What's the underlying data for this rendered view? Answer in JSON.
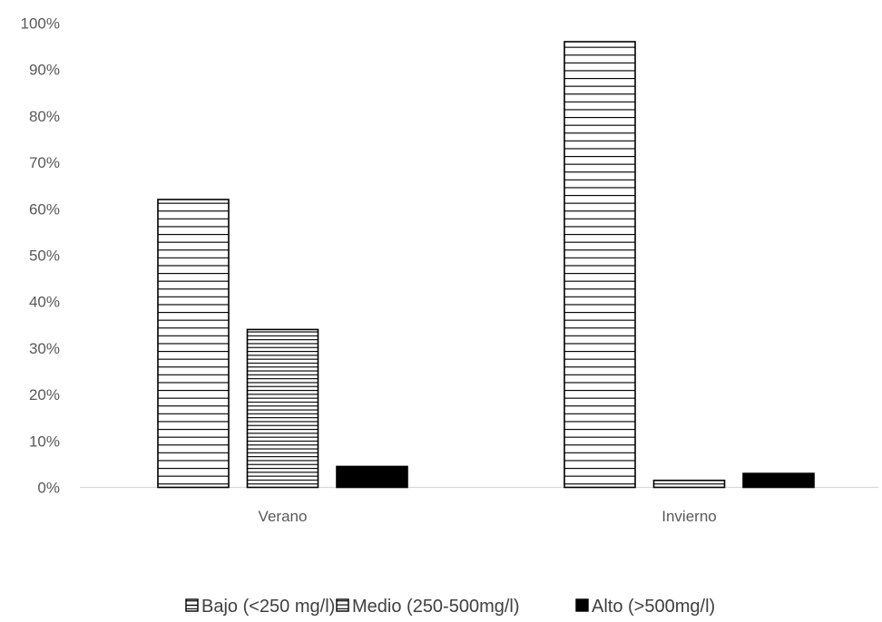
{
  "chart_data": {
    "type": "bar",
    "categories": [
      "Verano",
      "Invierno"
    ],
    "series": [
      {
        "name": "Bajo (<250 mg/l)",
        "values": [
          62,
          96
        ],
        "pattern": "wide-horizontal"
      },
      {
        "name": "Medio (250-500mg/l)",
        "values": [
          34,
          1.5
        ],
        "pattern": "narrow-horizontal"
      },
      {
        "name": "Alto (>500mg/l)",
        "values": [
          4.5,
          3
        ],
        "pattern": "solid"
      }
    ],
    "y_ticks": [
      "0%",
      "10%",
      "20%",
      "30%",
      "40%",
      "50%",
      "60%",
      "70%",
      "80%",
      "90%",
      "100%"
    ],
    "ylim": [
      0,
      100
    ],
    "grid": false,
    "legend": "bottom",
    "colors": {
      "bar_outline": "#000000",
      "fill": "#ffffff",
      "axis": "#d9d9d9",
      "text": "#595959"
    }
  }
}
